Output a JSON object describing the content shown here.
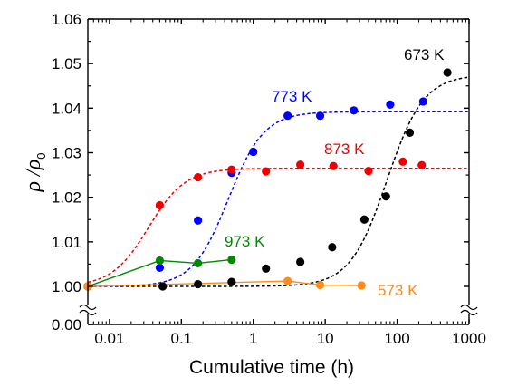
{
  "chart_data": {
    "type": "scatter",
    "xlabel": "Cumulative time (h)",
    "ylabel": "ρ /ρ0",
    "ylabel_parts": {
      "rho1": "ρ",
      "slash": " /",
      "rho2": "ρ",
      "sub": "0"
    },
    "xscale": "log",
    "xlim": [
      0.005,
      1000
    ],
    "ylim": [
      0.995,
      1.06
    ],
    "axis_break": "y-axis broken between 0.00 and 1.00",
    "x_ticks": [
      {
        "value": 0.01,
        "label": "0.01"
      },
      {
        "value": 0.1,
        "label": "0.1"
      },
      {
        "value": 1,
        "label": "1"
      },
      {
        "value": 10,
        "label": "10"
      },
      {
        "value": 100,
        "label": "100"
      },
      {
        "value": 1000,
        "label": "1000"
      }
    ],
    "y_ticks": [
      {
        "value": 1.0,
        "label": "1.00"
      },
      {
        "value": 1.01,
        "label": "1.01"
      },
      {
        "value": 1.02,
        "label": "1.02"
      },
      {
        "value": 1.03,
        "label": "1.03"
      },
      {
        "value": 1.04,
        "label": "1.04"
      },
      {
        "value": 1.05,
        "label": "1.05"
      },
      {
        "value": 1.06,
        "label": "1.06"
      }
    ],
    "y_break_tick": {
      "label": "0.00"
    },
    "grid": false,
    "series": [
      {
        "name": "673 K",
        "color": "#000000",
        "style": "dashed-fit",
        "x": [
          0.005,
          0.055,
          0.17,
          0.5,
          1.5,
          4.5,
          12.5,
          35,
          70,
          150,
          500
        ],
        "y": [
          1.0,
          1.0,
          1.0005,
          1.001,
          1.004,
          1.0055,
          1.0088,
          1.015,
          1.0202,
          1.0345,
          1.048
        ],
        "fit": {
          "y0": 1.0,
          "y1": 1.0475,
          "x0": 72,
          "p": 1.7
        }
      },
      {
        "name": "773 K",
        "color": "#0000ff",
        "style": "dashed-fit",
        "x": [
          0.005,
          0.05,
          0.17,
          0.5,
          1.0,
          3.0,
          8.5,
          25,
          80,
          230
        ],
        "y": [
          1.0,
          1.0042,
          1.0148,
          1.0255,
          1.0302,
          1.0383,
          1.0383,
          1.0395,
          1.0408,
          1.0415
        ],
        "fit": {
          "y0": 1.0,
          "y1": 1.0392,
          "x0": 0.45,
          "p": 1.75
        }
      },
      {
        "name": "873 K",
        "color": "#ee0000",
        "style": "dashed-fit",
        "x": [
          0.05,
          0.17,
          0.5,
          1.5,
          4.5,
          13,
          40,
          120,
          220
        ],
        "y": [
          1.0182,
          1.0245,
          1.0262,
          1.0258,
          1.0273,
          1.027,
          1.0259,
          1.028,
          1.0272
        ],
        "fit": {
          "y0": 1.0,
          "y1": 1.0265,
          "x0": 0.035,
          "p": 1.7
        }
      },
      {
        "name": "973 K",
        "color": "#008800",
        "style": "solid-connect",
        "x": [
          0.005,
          0.05,
          0.17,
          0.5
        ],
        "y": [
          1.0,
          1.0058,
          1.0052,
          1.006
        ]
      },
      {
        "name": "573 K",
        "color": "#ff8c1a",
        "style": "solid-connect",
        "x": [
          0.005,
          3.0,
          8.5,
          32
        ],
        "y": [
          1.0,
          1.0012,
          1.0003,
          1.0002
        ]
      }
    ]
  }
}
